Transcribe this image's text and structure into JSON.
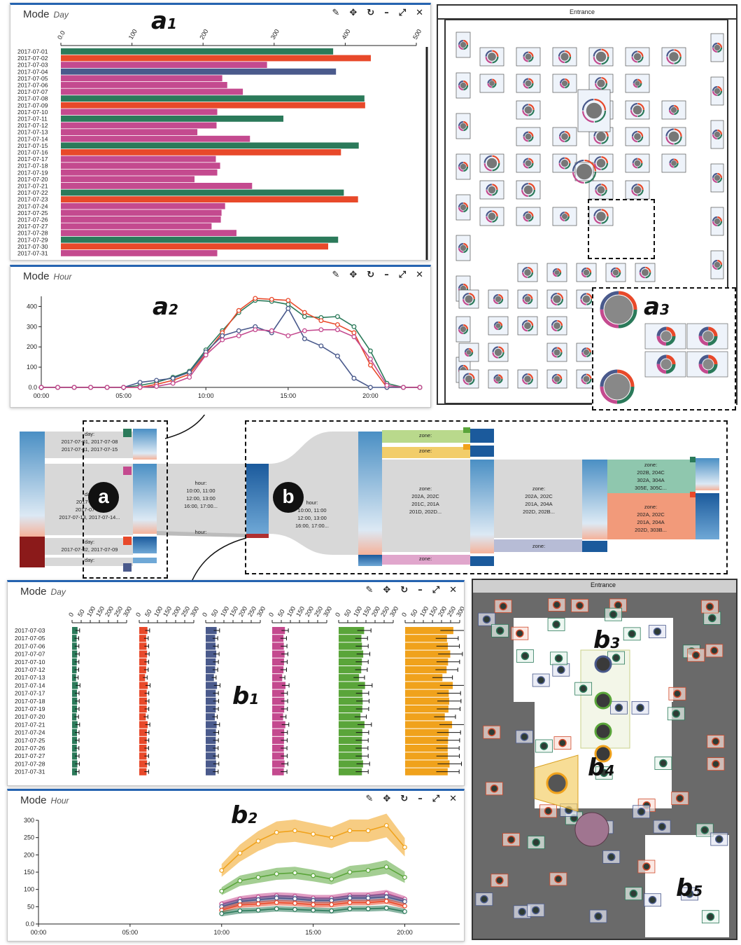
{
  "panel_a1": {
    "title": "Mode",
    "subtitle": "Day"
  },
  "panel_a2": {
    "title": "Mode",
    "subtitle": "Hour"
  },
  "panel_b1": {
    "title": "Mode",
    "subtitle": "Day"
  },
  "panel_b2": {
    "title": "Mode",
    "subtitle": "Hour"
  },
  "toolbar_icons": [
    "pencil-icon",
    "move-icon",
    "refresh-icon",
    "minimize-icon",
    "expand-icon",
    "close-icon"
  ],
  "labels": {
    "a1": "a",
    "a1_sub": "1",
    "a2": "a",
    "a2_sub": "2",
    "a3": "a",
    "a3_sub": "3",
    "b1": "b",
    "b1_sub": "1",
    "b2": "b",
    "b2_sub": "2",
    "b3": "b",
    "b3_sub": "3",
    "b4": "b",
    "b4_sub": "4",
    "b5": "b",
    "b5_sub": "5",
    "a": "a",
    "b": "b"
  },
  "floor": {
    "entrance": "Entrance"
  },
  "sankey": {
    "a_day1": "day:\n2017-07-01, 2017-07-08\n2017-07-11, 2017-07-15",
    "a_day2": "day:\n2017-07-03\n2017-07-06,\n2017-07-13, 2017-07-14...",
    "a_day3": "day:\n2017-07-02, 2017-07-09",
    "a_day4": "day:",
    "a_hour": "hour:\n10:00, 11:00\n12:00, 13:00\n16:00, 17:00...",
    "a_hour2": "hour:",
    "b_hour": "hour:\n10:00, 11:00\n12:00, 13:00\n16:00, 17:00...",
    "b_zone1": "zone:",
    "b_zone2": "zone:",
    "b_zone3": "zone:\n202A, 202C\n201C, 201A\n201D, 202D...",
    "b_zone4": "zone:",
    "b_zone5": "zone:\n202A, 202C\n201A, 204A\n202D, 202B...",
    "b_zone6": "zone:",
    "b_zone7": "zone:\n202B, 204C\n302A, 304A\n305E, 305C...",
    "b_zone8": "zone:\n202A, 202C\n201A, 204A\n202D, 303B..."
  },
  "colors": {
    "green": "#2b7a5a",
    "red": "#e8492a",
    "navy": "#4a5a8c",
    "magenta": "#c44a8f",
    "lime": "#5aa53a",
    "orange": "#f0a21c",
    "accent": "#2563b0"
  },
  "chart_data": [
    {
      "id": "a1",
      "type": "bar",
      "orientation": "horizontal",
      "categories": [
        "2017-07-01",
        "2017-07-02",
        "2017-07-03",
        "2017-07-04",
        "2017-07-05",
        "2017-07-06",
        "2017-07-07",
        "2017-07-08",
        "2017-07-09",
        "2017-07-10",
        "2017-07-11",
        "2017-07-12",
        "2017-07-13",
        "2017-07-14",
        "2017-07-15",
        "2017-07-16",
        "2017-07-17",
        "2017-07-18",
        "2017-07-19",
        "2017-07-20",
        "2017-07-21",
        "2017-07-22",
        "2017-07-23",
        "2017-07-24",
        "2017-07-25",
        "2017-07-26",
        "2017-07-27",
        "2017-07-28",
        "2017-07-29",
        "2017-07-30",
        "2017-07-31"
      ],
      "values": [
        383,
        436,
        290,
        387,
        227,
        234,
        256,
        427,
        428,
        220,
        313,
        219,
        192,
        266,
        419,
        394,
        218,
        224,
        220,
        188,
        269,
        398,
        418,
        231,
        226,
        225,
        212,
        247,
        390,
        376,
        220
      ],
      "bar_colors": [
        "#2b7a5a",
        "#e8492a",
        "#c44a8f",
        "#4a5a8c",
        "#c44a8f",
        "#c44a8f",
        "#c44a8f",
        "#2b7a5a",
        "#e8492a",
        "#c44a8f",
        "#2b7a5a",
        "#c44a8f",
        "#c44a8f",
        "#c44a8f",
        "#2b7a5a",
        "#e8492a",
        "#c44a8f",
        "#c44a8f",
        "#c44a8f",
        "#c44a8f",
        "#c44a8f",
        "#2b7a5a",
        "#e8492a",
        "#c44a8f",
        "#c44a8f",
        "#c44a8f",
        "#c44a8f",
        "#c44a8f",
        "#2b7a5a",
        "#e8492a",
        "#c44a8f"
      ],
      "xlim": [
        0,
        500
      ],
      "xticks": [
        "0.0",
        "100",
        "200",
        "300",
        "400",
        "500"
      ]
    },
    {
      "id": "a2",
      "type": "line",
      "x": [
        0,
        1,
        2,
        3,
        4,
        5,
        6,
        7,
        8,
        9,
        10,
        11,
        12,
        13,
        14,
        15,
        16,
        17,
        18,
        19,
        20,
        21,
        22,
        23
      ],
      "xticks": [
        "00:00",
        "05:00",
        "10:00",
        "15:00",
        "20:00"
      ],
      "yticks": [
        "0.0",
        "100",
        "200",
        "300",
        "400"
      ],
      "ylim": [
        0,
        450
      ],
      "series": [
        {
          "color": "#2b7a5a",
          "values": [
            0,
            0,
            0,
            0,
            0,
            0,
            10,
            25,
            50,
            80,
            185,
            280,
            370,
            430,
            425,
            410,
            350,
            345,
            350,
            300,
            180,
            20,
            0,
            0
          ]
        },
        {
          "color": "#e8492a",
          "values": [
            0,
            0,
            0,
            0,
            0,
            0,
            0,
            15,
            35,
            65,
            165,
            270,
            380,
            440,
            435,
            430,
            370,
            330,
            310,
            270,
            110,
            0,
            0,
            0
          ]
        },
        {
          "color": "#4a5a8c",
          "values": [
            0,
            0,
            0,
            0,
            0,
            0,
            25,
            35,
            45,
            75,
            175,
            255,
            280,
            300,
            270,
            390,
            240,
            205,
            155,
            45,
            0,
            0,
            0,
            0
          ]
        },
        {
          "color": "#c44a8f",
          "values": [
            0,
            0,
            0,
            0,
            0,
            0,
            0,
            5,
            20,
            50,
            160,
            235,
            255,
            285,
            280,
            255,
            280,
            285,
            285,
            250,
            140,
            10,
            0,
            0
          ]
        }
      ]
    },
    {
      "id": "b1",
      "type": "bar",
      "orientation": "horizontal",
      "small_multiples": true,
      "categories": [
        "2017-07-03",
        "2017-07-05",
        "2017-07-06",
        "2017-07-07",
        "2017-07-10",
        "2017-07-12",
        "2017-07-13",
        "2017-07-14",
        "2017-07-17",
        "2017-07-18",
        "2017-07-19",
        "2017-07-20",
        "2017-07-21",
        "2017-07-24",
        "2017-07-25",
        "2017-07-26",
        "2017-07-27",
        "2017-07-28",
        "2017-07-31"
      ],
      "xticks": [
        "0",
        "50",
        "100",
        "150",
        "200",
        "250",
        "300"
      ],
      "xlim": [
        0,
        300
      ],
      "series": [
        {
          "color": "#2b7a5a",
          "values": [
            30,
            25,
            26,
            28,
            26,
            25,
            22,
            32,
            27,
            28,
            27,
            24,
            30,
            27,
            27,
            26,
            27,
            29,
            27
          ]
        },
        {
          "color": "#e8492a",
          "values": [
            45,
            38,
            40,
            43,
            40,
            38,
            32,
            47,
            41,
            42,
            41,
            36,
            46,
            42,
            41,
            40,
            40,
            43,
            40
          ]
        },
        {
          "color": "#4a5a8c",
          "values": [
            60,
            52,
            54,
            58,
            55,
            52,
            45,
            62,
            55,
            56,
            55,
            50,
            60,
            56,
            55,
            54,
            55,
            57,
            54
          ]
        },
        {
          "color": "#c44a8f",
          "values": [
            70,
            62,
            64,
            68,
            65,
            62,
            55,
            73,
            66,
            67,
            66,
            60,
            72,
            66,
            65,
            64,
            65,
            68,
            64
          ]
        },
        {
          "color": "#5aa53a",
          "values": [
            140,
            125,
            128,
            135,
            128,
            124,
            112,
            145,
            130,
            132,
            130,
            120,
            142,
            130,
            128,
            127,
            128,
            134,
            128
          ]
        },
        {
          "color": "#f0a21c",
          "values": [
            265,
            230,
            235,
            248,
            236,
            228,
            205,
            262,
            240,
            242,
            238,
            218,
            258,
            240,
            236,
            234,
            235,
            244,
            234
          ]
        }
      ]
    },
    {
      "id": "b2",
      "type": "area",
      "band": true,
      "x": [
        10,
        11,
        12,
        13,
        14,
        15,
        16,
        17,
        18,
        19,
        20
      ],
      "xticks": [
        "00:00",
        "05:00",
        "10:00",
        "15:00",
        "20:00"
      ],
      "yticks": [
        "0.0",
        "50",
        "100",
        "150",
        "200",
        "250",
        "300"
      ],
      "ylim": [
        0,
        300
      ],
      "series": [
        {
          "color": "#f0a21c",
          "values": [
            155,
            205,
            240,
            265,
            270,
            260,
            250,
            270,
            270,
            285,
            222
          ]
        },
        {
          "color": "#5aa53a",
          "values": [
            95,
            125,
            135,
            145,
            148,
            140,
            130,
            150,
            155,
            165,
            135
          ]
        },
        {
          "color": "#c44a8f",
          "values": [
            58,
            72,
            78,
            82,
            80,
            75,
            75,
            82,
            82,
            88,
            72
          ]
        },
        {
          "color": "#4a5a8c",
          "values": [
            50,
            65,
            70,
            75,
            73,
            68,
            68,
            75,
            75,
            78,
            65
          ]
        },
        {
          "color": "#e8492a",
          "values": [
            40,
            55,
            58,
            62,
            60,
            56,
            56,
            62,
            62,
            66,
            52
          ]
        },
        {
          "color": "#2b7a5a",
          "values": [
            30,
            38,
            40,
            44,
            42,
            40,
            38,
            44,
            44,
            46,
            36
          ]
        }
      ]
    }
  ]
}
